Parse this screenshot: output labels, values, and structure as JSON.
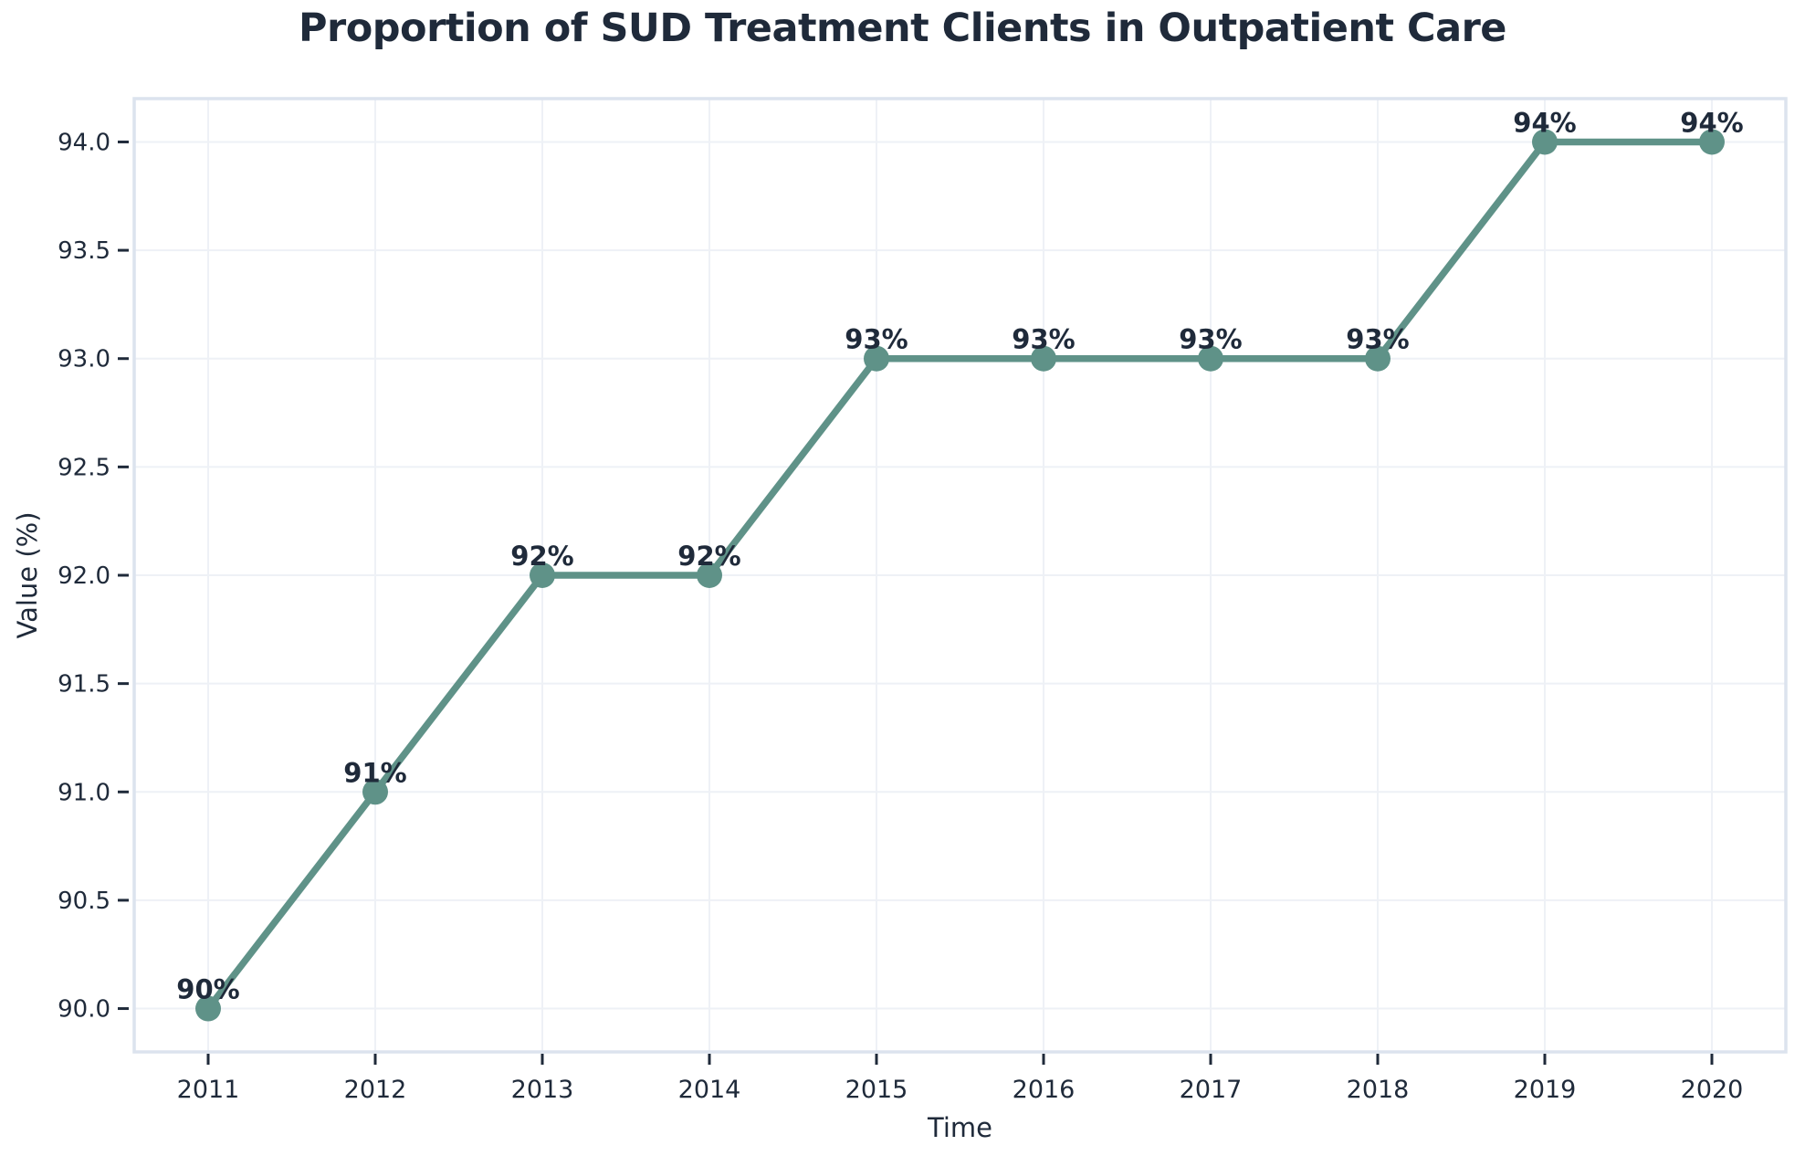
{
  "chart_data": {
    "type": "line",
    "title": "Proportion of SUD Treatment Clients in Outpatient Care",
    "xlabel": "Time",
    "ylabel": "Value (%)",
    "categories": [
      "2011",
      "2012",
      "2013",
      "2014",
      "2015",
      "2016",
      "2017",
      "2018",
      "2019",
      "2020"
    ],
    "series": [
      {
        "name": "Proportion of SUD treatment clients in outpatient care",
        "values": [
          90,
          91,
          92,
          92,
          93,
          93,
          93,
          93,
          94,
          94
        ]
      }
    ],
    "point_labels": [
      "90%",
      "91%",
      "92%",
      "92%",
      "93%",
      "93%",
      "93%",
      "93%",
      "94%",
      "94%"
    ],
    "yticks": [
      90.0,
      90.5,
      91.0,
      91.5,
      92.0,
      92.5,
      93.0,
      93.5,
      94.0
    ],
    "ytick_labels": [
      "90.0",
      "90.5",
      "91.0",
      "91.5",
      "92.0",
      "92.5",
      "93.0",
      "93.5",
      "94.0"
    ],
    "ylim": [
      89.8,
      94.2
    ],
    "grid": true,
    "legend_position": "none",
    "colors": {
      "line": "#5f9288",
      "marker": "#5f9288",
      "text": "#1f2a3a",
      "grid": "#eef1f6",
      "plot_border": "#dce3ee",
      "background": "#ffffff"
    }
  }
}
